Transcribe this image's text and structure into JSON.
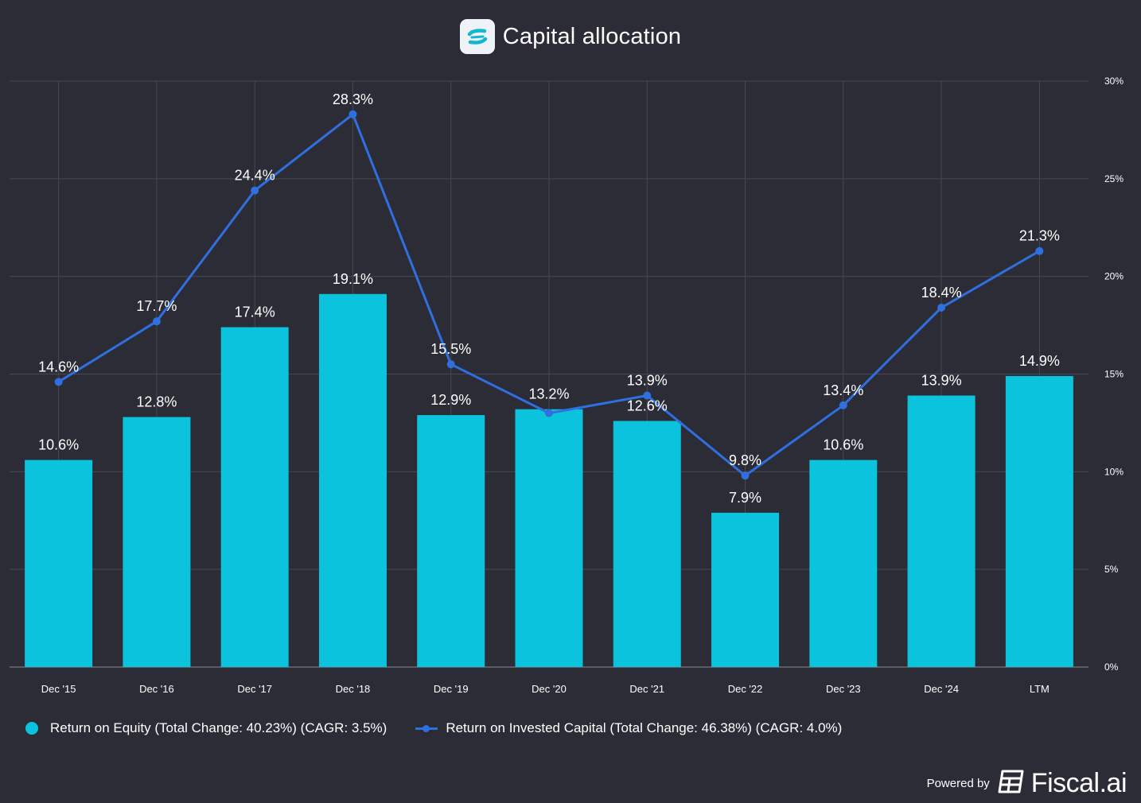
{
  "header": {
    "title": "Capital allocation"
  },
  "colors": {
    "background": "#2b2c35",
    "bar": "#0bc3dd",
    "line": "#2f6fe0",
    "grid": "#464852",
    "text": "#ffffff"
  },
  "chart_data": {
    "type": "bar",
    "title": "Capital allocation",
    "categories": [
      "Dec '15",
      "Dec '16",
      "Dec '17",
      "Dec '18",
      "Dec '19",
      "Dec '20",
      "Dec '21",
      "Dec '22",
      "Dec '23",
      "Dec '24",
      "LTM"
    ],
    "ylim": [
      0,
      30
    ],
    "yticks": [
      "0%",
      "5%",
      "10%",
      "15%",
      "20%",
      "25%",
      "30%"
    ],
    "ytick_values": [
      0,
      5,
      10,
      15,
      20,
      25,
      30
    ],
    "y_axis_side": "right",
    "grid": true,
    "legend_position": "bottom-left",
    "series": [
      {
        "name": "Return on Equity (Total Change: 40.23%) (CAGR: 3.5%)",
        "type": "bar",
        "values": [
          10.6,
          12.8,
          17.4,
          19.1,
          12.9,
          13.2,
          12.6,
          7.9,
          10.6,
          13.9,
          14.9
        ],
        "labels": [
          "10.6%",
          "12.8%",
          "17.4%",
          "19.1%",
          "12.9%",
          "13.2%",
          "12.6%",
          "7.9%",
          "10.6%",
          "13.9%",
          "14.9%"
        ]
      },
      {
        "name": "Return on Invested Capital (Total Change: 46.38%) (CAGR: 4.0%)",
        "type": "line",
        "values": [
          14.6,
          17.7,
          24.4,
          28.3,
          15.5,
          13.0,
          13.9,
          9.8,
          13.4,
          18.4,
          21.3
        ],
        "labels": [
          "14.6%",
          "17.7%",
          "24.4%",
          "28.3%",
          "15.5%",
          "",
          "13.9%",
          "9.8%",
          "13.4%",
          "18.4%",
          "21.3%"
        ]
      }
    ]
  },
  "legend": {
    "items": [
      {
        "label": "Return on Equity (Total Change: 40.23%) (CAGR: 3.5%)"
      },
      {
        "label": "Return on Invested Capital (Total Change: 46.38%) (CAGR: 4.0%)"
      }
    ]
  },
  "footer": {
    "powered_label": "Powered by",
    "brand": "Fiscal.ai"
  }
}
